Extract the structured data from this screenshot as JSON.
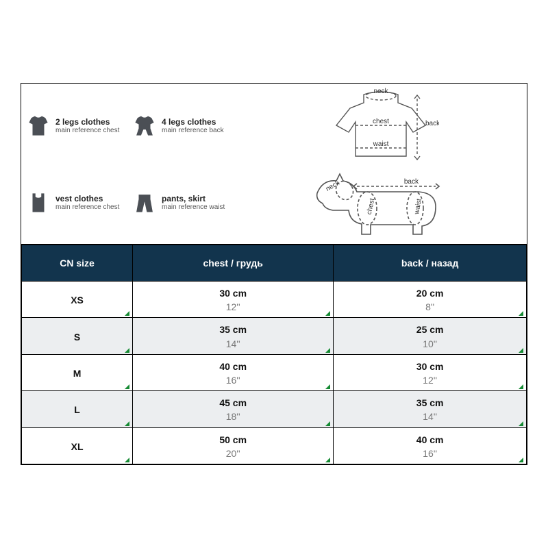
{
  "legend": {
    "types": [
      {
        "title": "2 legs clothes",
        "sub": "main reference chest"
      },
      {
        "title": "4 legs clothes",
        "sub": "main reference back"
      },
      {
        "title": "vest clothes",
        "sub": "main reference chest"
      },
      {
        "title": "pants, skirt",
        "sub": "main reference waist"
      }
    ],
    "dia_labels": {
      "neck": "neck",
      "chest": "chest",
      "waist": "waist",
      "back": "back"
    }
  },
  "table": {
    "header_bg": "#12344d",
    "header_color": "#ffffff",
    "alt_row_bg": "#eceef0",
    "tick_color": "#158a33",
    "columns": [
      {
        "label": "CN size"
      },
      {
        "label": "chest  / грудь"
      },
      {
        "label": "back / назад"
      }
    ],
    "col_widths": [
      "22%",
      "39%",
      "39%"
    ],
    "rows": [
      {
        "size": "XS",
        "chest_cm": "30 cm",
        "chest_in": "12''",
        "back_cm": "20 cm",
        "back_in": "8''",
        "alt": false
      },
      {
        "size": "S",
        "chest_cm": "35 cm",
        "chest_in": "14''",
        "back_cm": "25 cm",
        "back_in": "10''",
        "alt": true
      },
      {
        "size": "M",
        "chest_cm": "40 cm",
        "chest_in": "16''",
        "back_cm": "30 cm",
        "back_in": "12''",
        "alt": false
      },
      {
        "size": "L",
        "chest_cm": "45 cm",
        "chest_in": "18''",
        "back_cm": "35 cm",
        "back_in": "14''",
        "alt": true
      },
      {
        "size": "XL",
        "chest_cm": "50 cm",
        "chest_in": "20''",
        "back_cm": "40 cm",
        "back_in": "16''",
        "alt": false
      }
    ]
  }
}
